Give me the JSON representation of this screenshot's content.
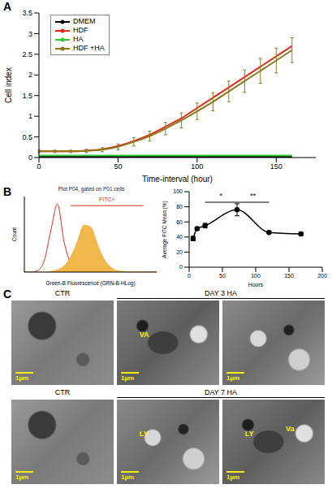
{
  "chart_data": [
    {
      "panel": "A",
      "type": "line",
      "xlabel": "Time-interval (hour)",
      "ylabel": "Cell index",
      "x": [
        0,
        10,
        20,
        30,
        40,
        50,
        60,
        70,
        80,
        90,
        100,
        110,
        120,
        130,
        140,
        150,
        160
      ],
      "xlim": [
        0,
        175
      ],
      "xticks": [
        0,
        50,
        100,
        150
      ],
      "ylim": [
        0,
        3.5
      ],
      "yticks": [
        0,
        0.5,
        1,
        1.5,
        2,
        2.5,
        3,
        3.5
      ],
      "legend": "upper left",
      "series": [
        {
          "name": "DMEM",
          "color": "#000000",
          "values": [
            0.02,
            0.02,
            0.02,
            0.02,
            0.02,
            0.02,
            0.02,
            0.02,
            0.02,
            0.02,
            0.02,
            0.02,
            0.02,
            0.02,
            0.02,
            0.02,
            0.02
          ]
        },
        {
          "name": "HDF",
          "color": "#e8291c",
          "values": [
            0.15,
            0.15,
            0.15,
            0.17,
            0.2,
            0.28,
            0.4,
            0.55,
            0.75,
            0.95,
            1.2,
            1.45,
            1.7,
            1.95,
            2.2,
            2.45,
            2.7
          ]
        },
        {
          "name": "HA",
          "color": "#2ecc2e",
          "values": [
            0.05,
            0.05,
            0.05,
            0.05,
            0.05,
            0.05,
            0.05,
            0.05,
            0.05,
            0.05,
            0.05,
            0.05,
            0.05,
            0.05,
            0.05,
            0.05,
            0.05
          ]
        },
        {
          "name": "HDF +HA",
          "color": "#8c7a1e",
          "values": [
            0.15,
            0.15,
            0.15,
            0.16,
            0.19,
            0.26,
            0.38,
            0.52,
            0.7,
            0.9,
            1.12,
            1.35,
            1.6,
            1.85,
            2.1,
            2.35,
            2.6
          ],
          "errors": [
            0.03,
            0.03,
            0.03,
            0.04,
            0.05,
            0.07,
            0.1,
            0.12,
            0.15,
            0.18,
            0.2,
            0.22,
            0.25,
            0.27,
            0.3,
            0.3,
            0.3
          ]
        }
      ]
    },
    {
      "panel": "B",
      "type": "area",
      "title": "Plot P04, gated on P01 cells",
      "xlabel": "Green-B Fluorescence (GRN-B-HLog)",
      "ylabel": "Count",
      "x": [
        0,
        0.2,
        0.4,
        0.6,
        0.8,
        1,
        1.2,
        1.4,
        1.6,
        1.8,
        2,
        2.2,
        2.4,
        2.6,
        2.8,
        3,
        3.2,
        3.4,
        3.6,
        3.8,
        4
      ],
      "xlim": [
        0,
        4
      ],
      "ylim": [
        0,
        100
      ],
      "tick_labels": false,
      "series": [
        {
          "color": "#e8291c",
          "values": [
            0,
            0,
            2,
            15,
            55,
            90,
            40,
            12,
            4,
            1,
            0,
            0,
            0,
            0,
            0,
            0,
            0,
            0,
            0,
            0,
            0
          ]
        },
        {
          "color": "#f2b84b",
          "values": [
            0,
            0,
            0,
            0,
            1,
            3,
            8,
            20,
            40,
            62,
            60,
            38,
            18,
            7,
            2,
            1,
            0,
            0,
            0,
            0,
            0
          ]
        }
      ],
      "gate": {
        "label": "FITC+",
        "x": [
          1.4,
          3.6
        ],
        "y": 88
      }
    },
    {
      "type": "line",
      "xlabel": "Hours",
      "ylabel": "Average FITC Mean (%)",
      "x": [
        6,
        12,
        24,
        72,
        120,
        168
      ],
      "xlim": [
        0,
        200
      ],
      "xticks": [
        0,
        50,
        100,
        150,
        200
      ],
      "ylim": [
        0,
        100
      ],
      "yticks": [
        0,
        20,
        40,
        60,
        80,
        100
      ],
      "marker": "circle",
      "series": [
        {
          "color": "#000000",
          "values": [
            38,
            51,
            55,
            76,
            46,
            44
          ],
          "errors": [
            3,
            2,
            3,
            8,
            1,
            2
          ]
        }
      ],
      "annotations": [
        {
          "text": "*",
          "x": [
            24,
            72
          ],
          "y": 86
        },
        {
          "text": "**",
          "x": [
            72,
            120
          ],
          "y": 86
        }
      ]
    }
  ],
  "micrographs": {
    "panel": "C",
    "rows": [
      {
        "control": "CTR",
        "group": "DAY 3 HA",
        "images": [
          {
            "scale": "1µm",
            "labels": []
          },
          {
            "scale": "1µm",
            "labels": [
              "VA"
            ]
          },
          {
            "scale": "1µm",
            "labels": []
          }
        ]
      },
      {
        "control": "CTR",
        "group": "DAY 7 HA",
        "images": [
          {
            "scale": "1µm",
            "labels": []
          },
          {
            "scale": "1µm",
            "labels": [
              "LY"
            ]
          },
          {
            "scale": "1µm",
            "labels": [
              "LY",
              "Va"
            ]
          }
        ]
      }
    ]
  }
}
